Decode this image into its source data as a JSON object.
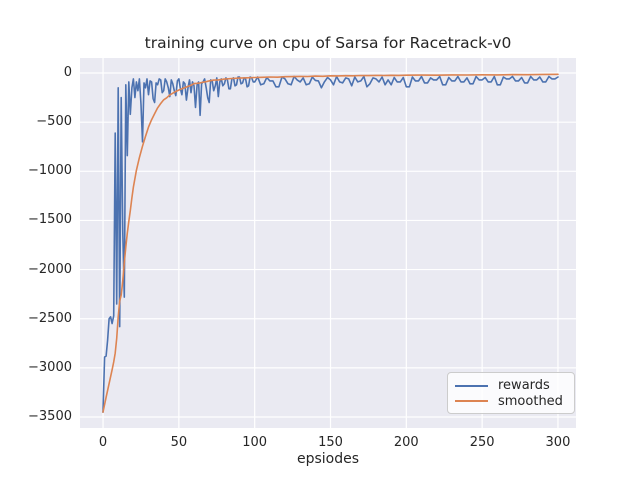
{
  "chart_data": {
    "type": "line",
    "title": "training curve on cpu of Sarsa for Racetrack-v0",
    "xlabel": "epsiodes",
    "ylabel": "",
    "xlim": [
      -15.2,
      311.9
    ],
    "ylim": [
      -3612,
      153
    ],
    "grid": true,
    "legend_position": "lower right",
    "x_ticks": {
      "values": [
        0,
        50,
        100,
        150,
        200,
        250,
        300
      ],
      "labels": [
        "0",
        "50",
        "100",
        "150",
        "200",
        "250",
        "300"
      ]
    },
    "y_ticks": {
      "values": [
        0,
        -500,
        -1000,
        -1500,
        -2000,
        -2500,
        -3000,
        -3500
      ],
      "labels": [
        "0",
        "−500",
        "−1000",
        "−1500",
        "−2000",
        "−2500",
        "−3000",
        "−3500"
      ]
    },
    "style": {
      "background": "#ffffff",
      "plot_background": "#eaeaf2",
      "grid_color": "#ffffff",
      "text_color": "#262626",
      "legend_background": "rgba(255,255,255,0.8)",
      "legend_border": "#cccccc"
    },
    "series": [
      {
        "name": "rewards",
        "color": "#4c72b0",
        "points": [
          [
            0,
            -3450
          ],
          [
            1,
            -2890
          ],
          [
            2,
            -2880
          ],
          [
            3,
            -2720
          ],
          [
            4,
            -2500
          ],
          [
            5,
            -2480
          ],
          [
            6,
            -2550
          ],
          [
            7,
            -2470
          ],
          [
            8,
            -610
          ],
          [
            9,
            -2350
          ],
          [
            10,
            -150
          ],
          [
            11,
            -2580
          ],
          [
            12,
            -250
          ],
          [
            13,
            -1630
          ],
          [
            14,
            -2280
          ],
          [
            15,
            -120
          ],
          [
            16,
            -840
          ],
          [
            17,
            -90
          ],
          [
            18,
            -420
          ],
          [
            19,
            -150
          ],
          [
            20,
            -60
          ],
          [
            21,
            -250
          ],
          [
            22,
            -90
          ],
          [
            23,
            -180
          ],
          [
            24,
            -60
          ],
          [
            25,
            -320
          ],
          [
            26,
            -700
          ],
          [
            27,
            -100
          ],
          [
            28,
            -150
          ],
          [
            29,
            -60
          ],
          [
            30,
            -220
          ],
          [
            31,
            -80
          ],
          [
            32,
            -90
          ],
          [
            33,
            -260
          ],
          [
            34,
            -300
          ],
          [
            35,
            -100
          ],
          [
            36,
            -120
          ],
          [
            37,
            -60
          ],
          [
            38,
            -70
          ],
          [
            39,
            -200
          ],
          [
            40,
            -180
          ],
          [
            41,
            -60
          ],
          [
            42,
            -90
          ],
          [
            43,
            -150
          ],
          [
            44,
            -240
          ],
          [
            45,
            -70
          ],
          [
            46,
            -110
          ],
          [
            47,
            -180
          ],
          [
            48,
            -230
          ],
          [
            49,
            -80
          ],
          [
            50,
            -60
          ],
          [
            51,
            -160
          ],
          [
            52,
            -220
          ],
          [
            53,
            -90
          ],
          [
            54,
            -110
          ],
          [
            55,
            -275
          ],
          [
            56,
            -150
          ],
          [
            57,
            -70
          ],
          [
            58,
            -200
          ],
          [
            59,
            -90
          ],
          [
            60,
            -130
          ],
          [
            61,
            -350
          ],
          [
            62,
            -120
          ],
          [
            63,
            -90
          ],
          [
            64,
            -430
          ],
          [
            65,
            -110
          ],
          [
            66,
            -90
          ],
          [
            67,
            -60
          ],
          [
            68,
            -150
          ],
          [
            69,
            -250
          ],
          [
            70,
            -300
          ],
          [
            71,
            -70
          ],
          [
            72,
            -80
          ],
          [
            73,
            -180
          ],
          [
            74,
            -130
          ],
          [
            75,
            -50
          ],
          [
            76,
            -240
          ],
          [
            77,
            -90
          ],
          [
            78,
            -60
          ],
          [
            79,
            -130
          ],
          [
            80,
            -110
          ],
          [
            81,
            -50
          ],
          [
            82,
            -70
          ],
          [
            83,
            -160
          ],
          [
            84,
            -160
          ],
          [
            85,
            -60
          ],
          [
            86,
            -50
          ],
          [
            87,
            -130
          ],
          [
            88,
            -120
          ],
          [
            89,
            -40
          ],
          [
            90,
            -40
          ],
          [
            91,
            -110
          ],
          [
            92,
            -100
          ],
          [
            93,
            -50
          ],
          [
            94,
            -60
          ],
          [
            95,
            -140
          ],
          [
            96,
            -130
          ],
          [
            97,
            -40
          ],
          [
            98,
            -50
          ],
          [
            99,
            -90
          ],
          [
            100,
            -90
          ],
          [
            102,
            -40
          ],
          [
            104,
            -120
          ],
          [
            106,
            -110
          ],
          [
            108,
            -45
          ],
          [
            110,
            -80
          ],
          [
            112,
            -80
          ],
          [
            114,
            -140
          ],
          [
            116,
            -140
          ],
          [
            118,
            -40
          ],
          [
            120,
            -60
          ],
          [
            122,
            -110
          ],
          [
            124,
            -120
          ],
          [
            126,
            -35
          ],
          [
            128,
            -70
          ],
          [
            130,
            -90
          ],
          [
            132,
            -50
          ],
          [
            134,
            -120
          ],
          [
            136,
            -110
          ],
          [
            138,
            -40
          ],
          [
            140,
            -75
          ],
          [
            142,
            -80
          ],
          [
            144,
            -150
          ],
          [
            146,
            -90
          ],
          [
            148,
            -45
          ],
          [
            150,
            -70
          ],
          [
            152,
            -120
          ],
          [
            154,
            -35
          ],
          [
            156,
            -90
          ],
          [
            158,
            -100
          ],
          [
            160,
            -50
          ],
          [
            162,
            -60
          ],
          [
            164,
            -130
          ],
          [
            166,
            -40
          ],
          [
            168,
            -90
          ],
          [
            170,
            -80
          ],
          [
            172,
            -35
          ],
          [
            174,
            -140
          ],
          [
            176,
            -110
          ],
          [
            178,
            -50
          ],
          [
            180,
            -60
          ],
          [
            182,
            -90
          ],
          [
            184,
            -40
          ],
          [
            186,
            -120
          ],
          [
            188,
            -70
          ],
          [
            190,
            -120
          ],
          [
            192,
            -45
          ],
          [
            194,
            -90
          ],
          [
            196,
            -90
          ],
          [
            198,
            -45
          ],
          [
            200,
            -140
          ],
          [
            202,
            -140
          ],
          [
            204,
            -40
          ],
          [
            206,
            -80
          ],
          [
            208,
            -80
          ],
          [
            210,
            -35
          ],
          [
            212,
            -100
          ],
          [
            214,
            -100
          ],
          [
            216,
            -50
          ],
          [
            218,
            -70
          ],
          [
            220,
            -70
          ],
          [
            222,
            -35
          ],
          [
            224,
            -120
          ],
          [
            226,
            -120
          ],
          [
            228,
            -45
          ],
          [
            230,
            -80
          ],
          [
            232,
            -80
          ],
          [
            234,
            -35
          ],
          [
            236,
            -90
          ],
          [
            238,
            -90
          ],
          [
            240,
            -50
          ],
          [
            242,
            -110
          ],
          [
            244,
            -110
          ],
          [
            246,
            -35
          ],
          [
            248,
            -70
          ],
          [
            250,
            -70
          ],
          [
            252,
            -45
          ],
          [
            254,
            -90
          ],
          [
            256,
            -90
          ],
          [
            258,
            -35
          ],
          [
            260,
            -120
          ],
          [
            262,
            -120
          ],
          [
            264,
            -40
          ],
          [
            266,
            -60
          ],
          [
            268,
            -60
          ],
          [
            270,
            -35
          ],
          [
            272,
            -80
          ],
          [
            274,
            -80
          ],
          [
            276,
            -45
          ],
          [
            278,
            -100
          ],
          [
            280,
            -100
          ],
          [
            282,
            -35
          ],
          [
            284,
            -70
          ],
          [
            286,
            -70
          ],
          [
            288,
            -40
          ],
          [
            290,
            -90
          ],
          [
            292,
            -90
          ],
          [
            294,
            -35
          ],
          [
            296,
            -60
          ],
          [
            298,
            -60
          ],
          [
            300,
            -40
          ]
        ]
      },
      {
        "name": "smoothed",
        "color": "#dd8452",
        "points": [
          [
            0,
            -3450
          ],
          [
            2,
            -3300
          ],
          [
            4,
            -3160
          ],
          [
            6,
            -3020
          ],
          [
            7,
            -2940
          ],
          [
            8,
            -2850
          ],
          [
            9,
            -2700
          ],
          [
            10,
            -2480
          ],
          [
            11,
            -2320
          ],
          [
            12,
            -2260
          ],
          [
            13,
            -2110
          ],
          [
            14,
            -1930
          ],
          [
            15,
            -1770
          ],
          [
            16,
            -1630
          ],
          [
            17,
            -1510
          ],
          [
            18,
            -1400
          ],
          [
            19,
            -1270
          ],
          [
            20,
            -1160
          ],
          [
            22,
            -990
          ],
          [
            24,
            -860
          ],
          [
            26,
            -745
          ],
          [
            28,
            -645
          ],
          [
            30,
            -550
          ],
          [
            32,
            -475
          ],
          [
            34,
            -415
          ],
          [
            36,
            -355
          ],
          [
            38,
            -310
          ],
          [
            40,
            -272
          ],
          [
            42,
            -252
          ],
          [
            44,
            -222
          ],
          [
            46,
            -205
          ],
          [
            48,
            -188
          ],
          [
            50,
            -173
          ],
          [
            52,
            -160
          ],
          [
            54,
            -148
          ],
          [
            56,
            -136
          ],
          [
            58,
            -125
          ],
          [
            60,
            -108
          ],
          [
            62,
            -104
          ],
          [
            64,
            -100
          ],
          [
            66,
            -93
          ],
          [
            68,
            -88
          ],
          [
            70,
            -80
          ],
          [
            73,
            -72
          ],
          [
            76,
            -70
          ],
          [
            80,
            -62
          ],
          [
            85,
            -56
          ],
          [
            90,
            -52
          ],
          [
            95,
            -48
          ],
          [
            100,
            -45
          ],
          [
            105,
            -43
          ],
          [
            110,
            -40
          ],
          [
            115,
            -42
          ],
          [
            120,
            -37
          ],
          [
            125,
            -36
          ],
          [
            130,
            -34
          ],
          [
            135,
            -35
          ],
          [
            140,
            -31
          ],
          [
            145,
            -33
          ],
          [
            150,
            -28
          ],
          [
            155,
            -29
          ],
          [
            160,
            -27
          ],
          [
            165,
            -28
          ],
          [
            170,
            -25
          ],
          [
            175,
            -26
          ],
          [
            180,
            -24
          ],
          [
            185,
            -25
          ],
          [
            190,
            -23
          ],
          [
            195,
            -24
          ],
          [
            200,
            -22
          ],
          [
            210,
            -21
          ],
          [
            220,
            -22
          ],
          [
            230,
            -19
          ],
          [
            240,
            -20
          ],
          [
            250,
            -18
          ],
          [
            260,
            -19
          ],
          [
            270,
            -16
          ],
          [
            280,
            -17
          ],
          [
            290,
            -14
          ],
          [
            300,
            -13
          ]
        ]
      }
    ]
  }
}
